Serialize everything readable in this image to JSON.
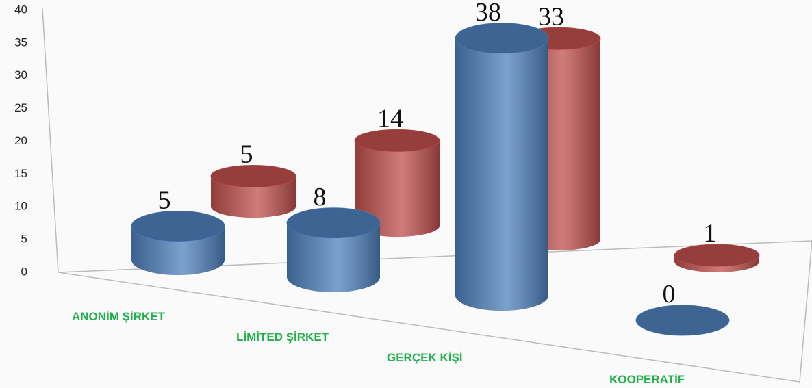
{
  "chart_data": {
    "type": "cylinder3d",
    "categories": [
      "ANONİM ŞİRKET",
      "LİMİTED ŞİRKET",
      "GERÇEK KİŞİ",
      "KOOPERATİF"
    ],
    "series": [
      {
        "color": "#4f81bd",
        "values": [
          5,
          8,
          38,
          0
        ]
      },
      {
        "color": "#c0504d",
        "values": [
          5,
          14,
          33,
          1
        ]
      }
    ],
    "ylim": [
      0,
      40
    ],
    "yticks": [
      0,
      5,
      10,
      15,
      20,
      25,
      30,
      35,
      40
    ],
    "category_color": "#22b04c"
  }
}
